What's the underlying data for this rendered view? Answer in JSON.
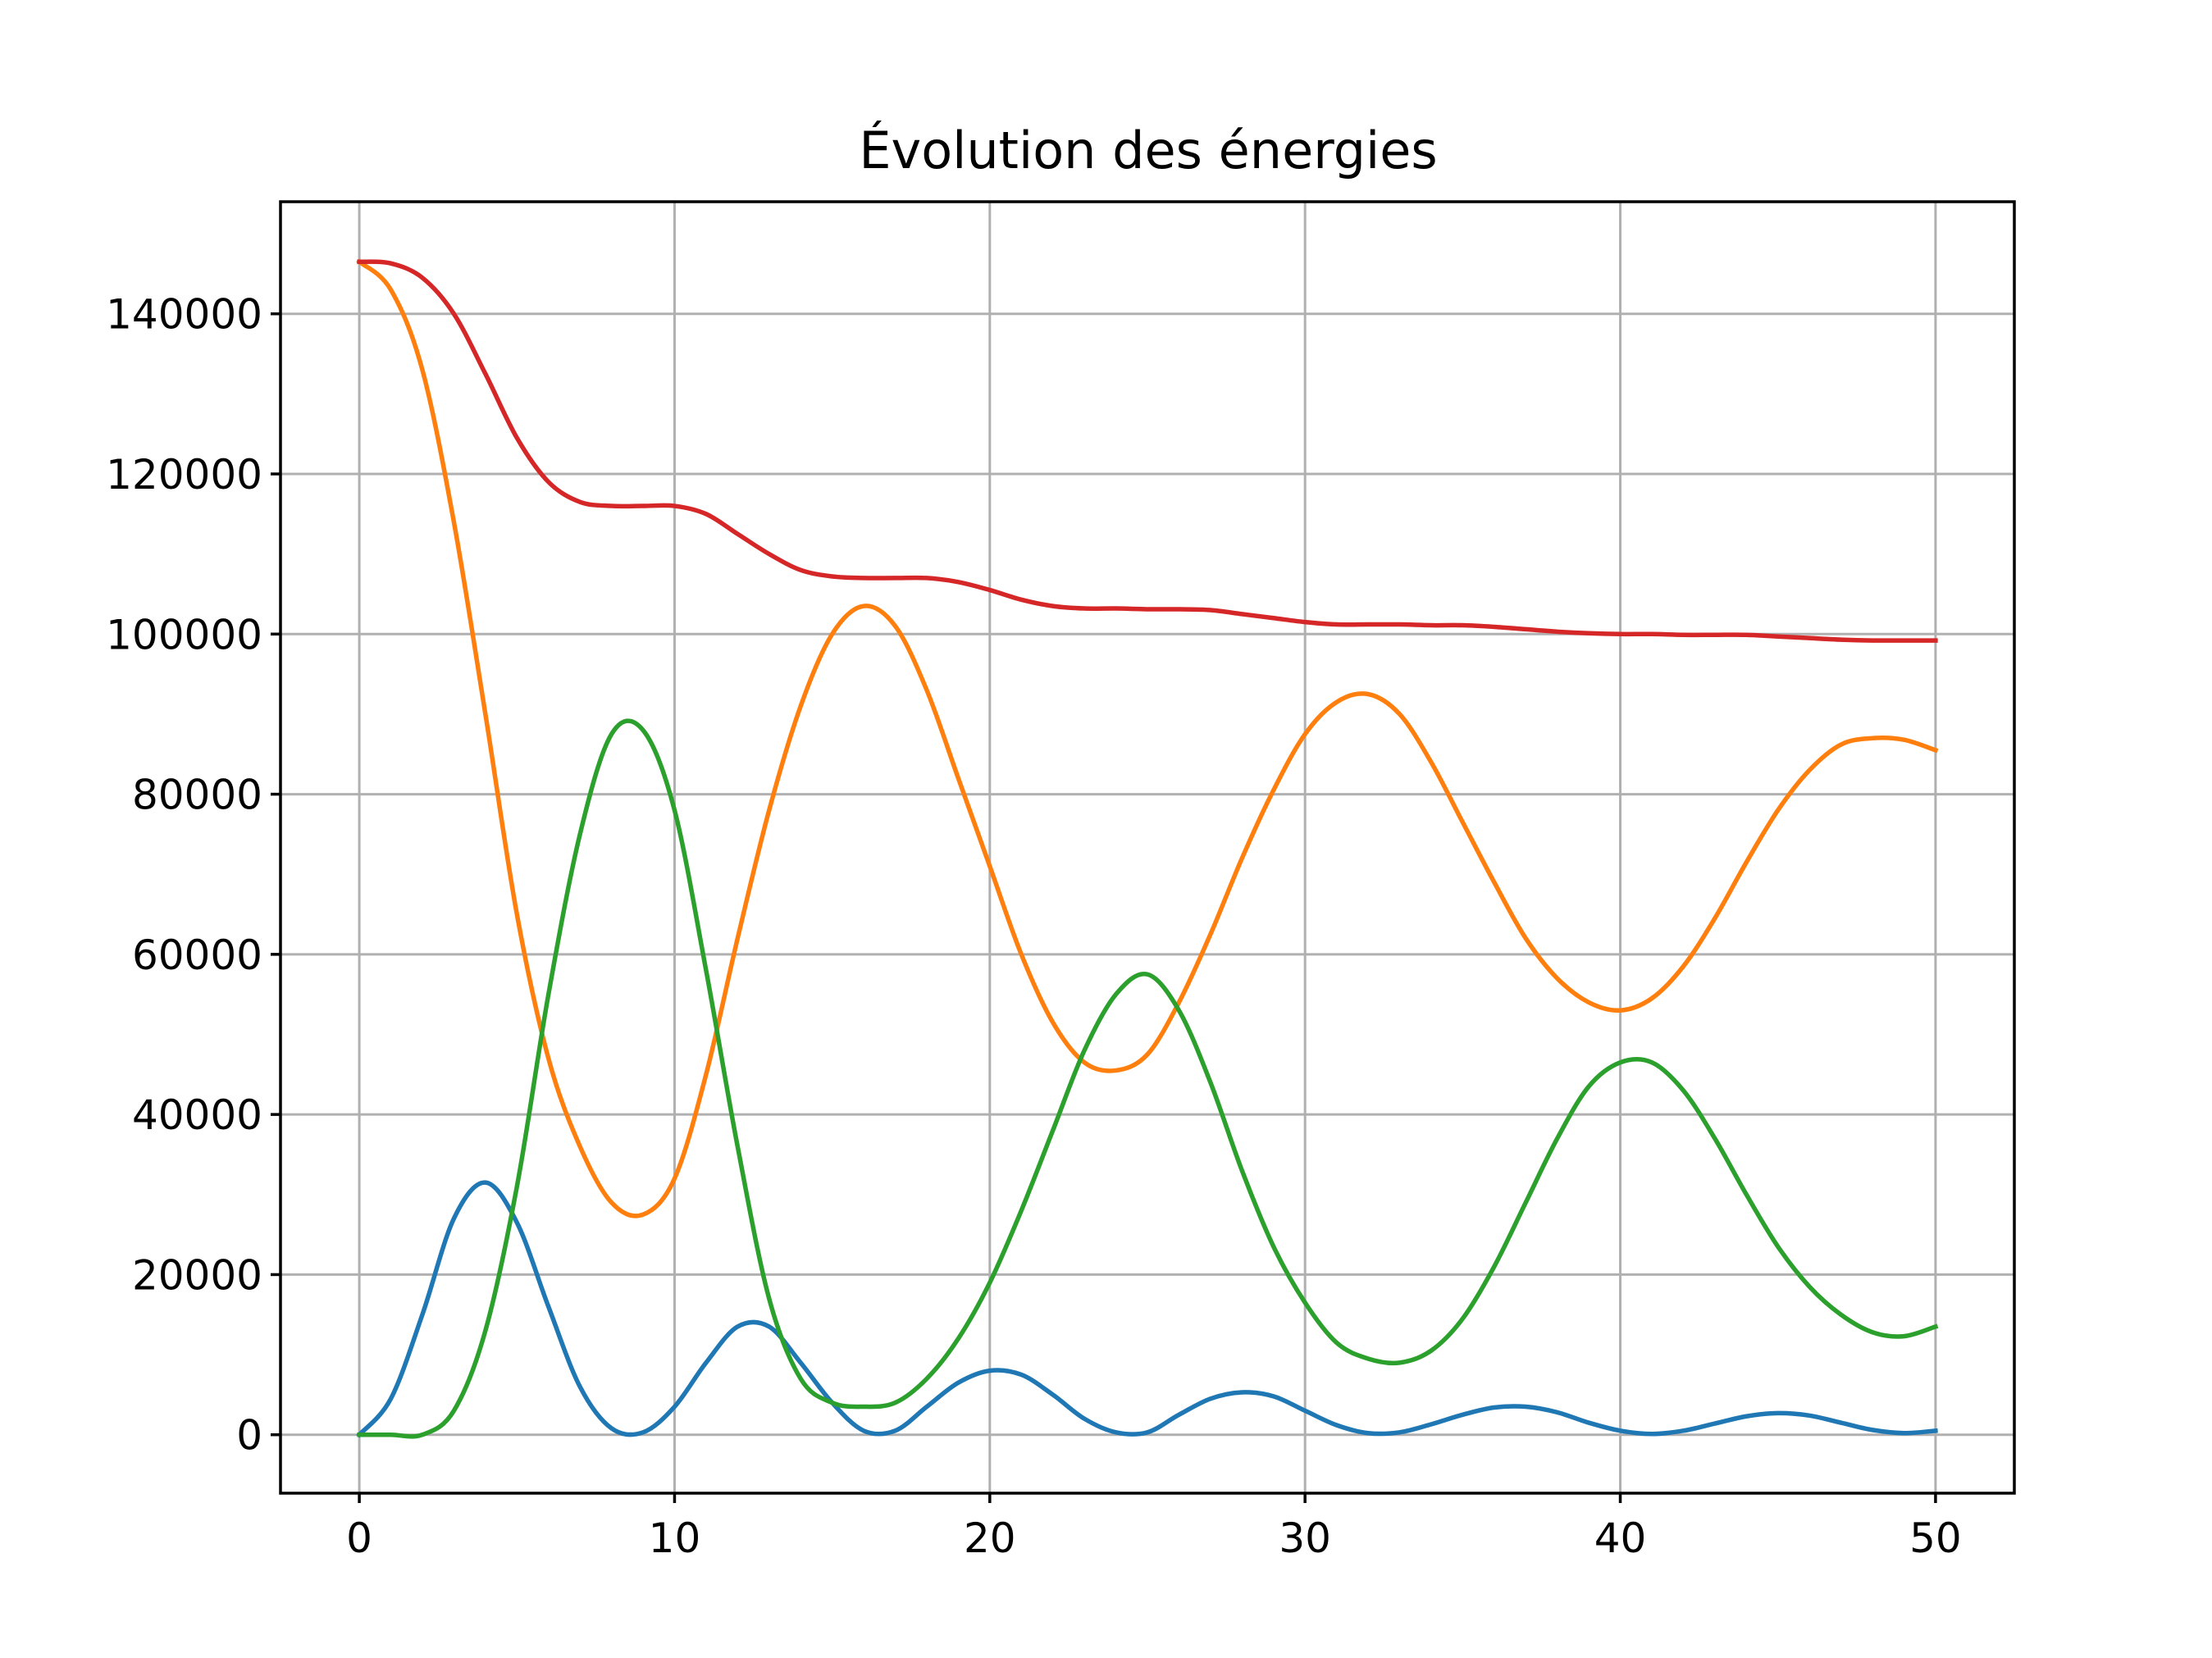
{
  "chart_data": {
    "type": "line",
    "title": "Évolution des énergies",
    "xlabel": "",
    "ylabel": "",
    "xlim": [
      -2.5,
      52.5
    ],
    "ylim": [
      -7300,
      154000
    ],
    "xticks": [
      0,
      10,
      20,
      30,
      40,
      50
    ],
    "yticks": [
      0,
      20000,
      40000,
      60000,
      80000,
      100000,
      120000,
      140000
    ],
    "xtick_labels": [
      "0",
      "10",
      "20",
      "30",
      "40",
      "50"
    ],
    "ytick_labels": [
      "0",
      "20000",
      "40000",
      "60000",
      "80000",
      "100000",
      "120000",
      "140000"
    ],
    "grid": true,
    "legend": "none",
    "series": [
      {
        "color": "#1f77b4",
        "x": [
          0,
          1,
          2,
          3,
          4,
          5,
          6,
          7,
          8,
          9,
          10,
          11,
          12,
          13,
          14,
          15,
          16,
          17,
          18,
          19,
          20,
          21,
          22,
          23,
          24,
          25,
          26,
          27,
          28,
          29,
          30,
          31,
          32,
          33,
          34,
          35,
          36,
          37,
          38,
          39,
          40,
          41,
          42,
          43,
          44,
          45,
          46,
          47,
          48,
          49,
          50
        ],
        "values": [
          0,
          4500,
          15000,
          27000,
          31500,
          26500,
          16000,
          6000,
          800,
          300,
          3500,
          9000,
          13500,
          13500,
          9000,
          4000,
          500,
          500,
          3500,
          6500,
          8000,
          7500,
          5000,
          2000,
          300,
          300,
          2500,
          4500,
          5300,
          4800,
          3000,
          1200,
          200,
          300,
          1300,
          2500,
          3400,
          3500,
          2800,
          1500,
          500,
          100,
          500,
          1400,
          2300,
          2700,
          2400,
          1500,
          600,
          200,
          500
        ]
      },
      {
        "color": "#ff7f0e",
        "x": [
          0,
          1,
          2,
          3,
          4,
          5,
          6,
          7,
          8,
          9,
          10,
          11,
          12,
          13,
          14,
          15,
          16,
          17,
          18,
          19,
          20,
          21,
          22,
          23,
          24,
          25,
          26,
          27,
          28,
          29,
          30,
          31,
          32,
          33,
          34,
          35,
          36,
          37,
          38,
          39,
          40,
          41,
          42,
          43,
          44,
          45,
          46,
          47,
          48,
          49,
          50
        ],
        "values": [
          146500,
          143000,
          133000,
          114000,
          90000,
          65000,
          47000,
          36000,
          29000,
          27500,
          32000,
          45000,
          62000,
          78000,
          91000,
          100000,
          103500,
          101000,
          93000,
          82000,
          71000,
          60000,
          51500,
          46500,
          45500,
          47500,
          54000,
          62500,
          72000,
          80500,
          87500,
          91500,
          92500,
          90000,
          84000,
          76500,
          69000,
          62000,
          57000,
          54000,
          53000,
          54500,
          58500,
          64500,
          71500,
          78000,
          83000,
          86200,
          87000,
          86800,
          85500
        ]
      },
      {
        "color": "#2ca02c",
        "x": [
          0,
          1,
          2,
          3,
          4,
          5,
          6,
          7,
          8,
          9,
          10,
          11,
          12,
          13,
          14,
          15,
          16,
          17,
          18,
          19,
          20,
          21,
          22,
          23,
          24,
          25,
          26,
          27,
          28,
          29,
          30,
          31,
          32,
          33,
          34,
          35,
          36,
          37,
          38,
          39,
          40,
          41,
          42,
          43,
          44,
          45,
          46,
          47,
          48,
          49,
          50
        ],
        "values": [
          0,
          0,
          0,
          3000,
          13000,
          31000,
          55000,
          75000,
          87500,
          88000,
          78000,
          58000,
          36000,
          17000,
          7000,
          4000,
          3500,
          4000,
          7000,
          12000,
          19000,
          28000,
          38000,
          48000,
          55000,
          57500,
          53000,
          44000,
          33000,
          23500,
          16500,
          11500,
          9500,
          9000,
          10500,
          14500,
          21000,
          29000,
          37000,
          43500,
          46500,
          46500,
          43000,
          37000,
          30000,
          23500,
          18500,
          15000,
          12800,
          12300,
          13500
        ]
      },
      {
        "color": "#d62728",
        "x": [
          0,
          1,
          2,
          3,
          4,
          5,
          6,
          7,
          8,
          9,
          10,
          11,
          12,
          13,
          14,
          15,
          16,
          17,
          18,
          19,
          20,
          21,
          22,
          23,
          24,
          25,
          26,
          27,
          28,
          29,
          30,
          31,
          32,
          33,
          34,
          35,
          36,
          37,
          38,
          39,
          40,
          41,
          42,
          43,
          44,
          45,
          46,
          47,
          48,
          49,
          50
        ],
        "values": [
          146500,
          146300,
          144500,
          140000,
          132500,
          124500,
          119000,
          116500,
          116000,
          116000,
          116000,
          115000,
          112500,
          110000,
          108000,
          107200,
          107000,
          107000,
          107000,
          106500,
          105500,
          104300,
          103500,
          103200,
          103200,
          103100,
          103100,
          103000,
          102500,
          102000,
          101500,
          101200,
          101200,
          101200,
          101100,
          101100,
          100900,
          100600,
          100300,
          100100,
          100000,
          100000,
          99900,
          99900,
          99900,
          99700,
          99500,
          99300,
          99200,
          99200,
          99200
        ]
      }
    ]
  }
}
